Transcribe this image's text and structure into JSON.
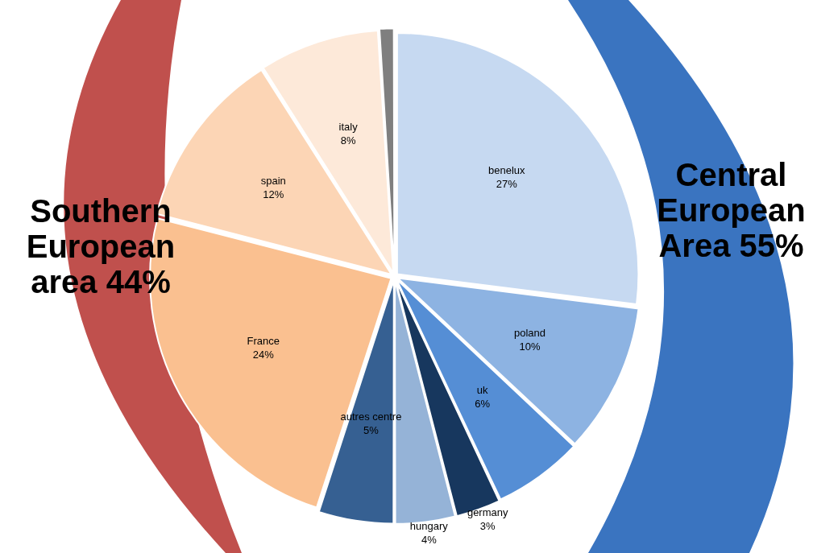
{
  "chart_data": {
    "type": "pie",
    "categories": [
      "benelux",
      "poland",
      "uk",
      "germany",
      "hungary",
      "autres centre",
      "France",
      "spain",
      "italy",
      null
    ],
    "values": [
      27,
      10,
      6,
      3,
      4,
      5,
      24,
      12,
      8,
      1
    ],
    "colors": [
      "#c6d9f1",
      "#8db3e2",
      "#558ed5",
      "#17375e",
      "#95b3d7",
      "#366092",
      "#fac090",
      "#fcd5b5",
      "#fde9d9",
      "#7f7f7f"
    ],
    "value_labels": [
      "27%",
      "10%",
      "6%",
      "3%",
      "4%",
      "5%",
      "24%",
      "12%",
      "8%",
      null
    ],
    "annotations": [
      "Southern European area 44%",
      "Central European Area 55%"
    ],
    "legend": false
  }
}
